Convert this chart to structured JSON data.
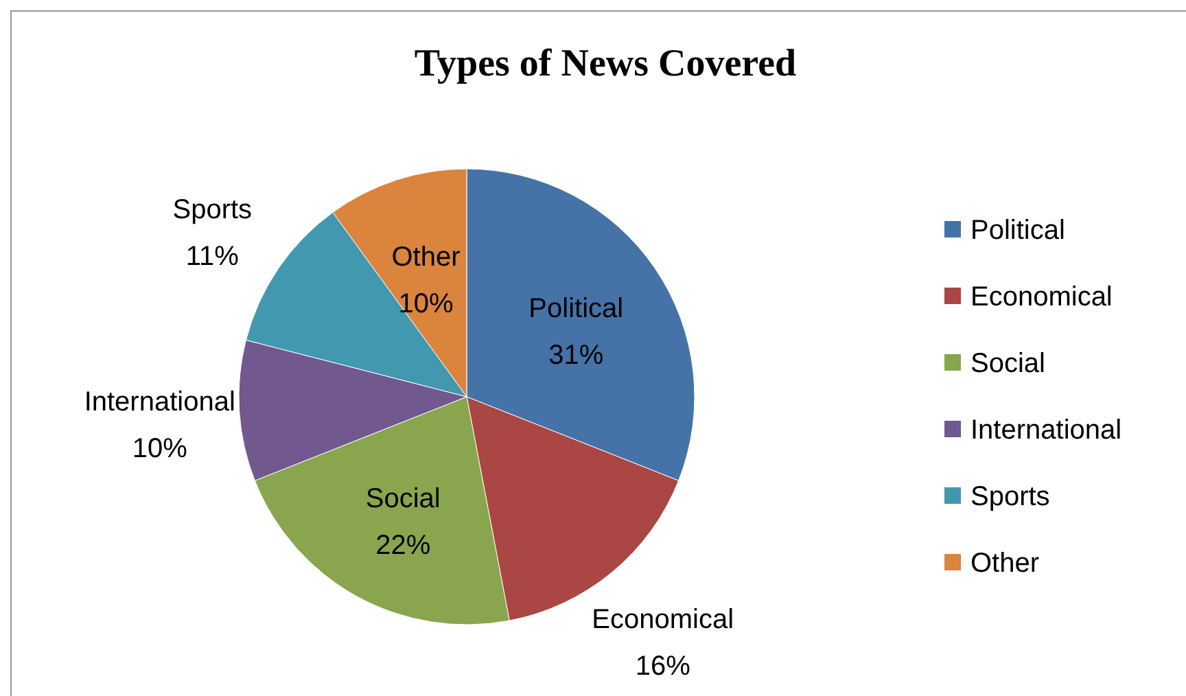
{
  "chart_data": {
    "type": "pie",
    "title": "Types of News Covered",
    "categories": [
      "Political",
      "Economical",
      "Social",
      "International",
      "Sports",
      "Other"
    ],
    "values": [
      31,
      16,
      22,
      10,
      11,
      10
    ],
    "colors": [
      "#4572a7",
      "#aa4643",
      "#89a54e",
      "#71588f",
      "#4198af",
      "#db843d"
    ],
    "legend": "right",
    "value_labels": [
      "31%",
      "16%",
      "22%",
      "10%",
      "11%",
      "10%"
    ]
  }
}
